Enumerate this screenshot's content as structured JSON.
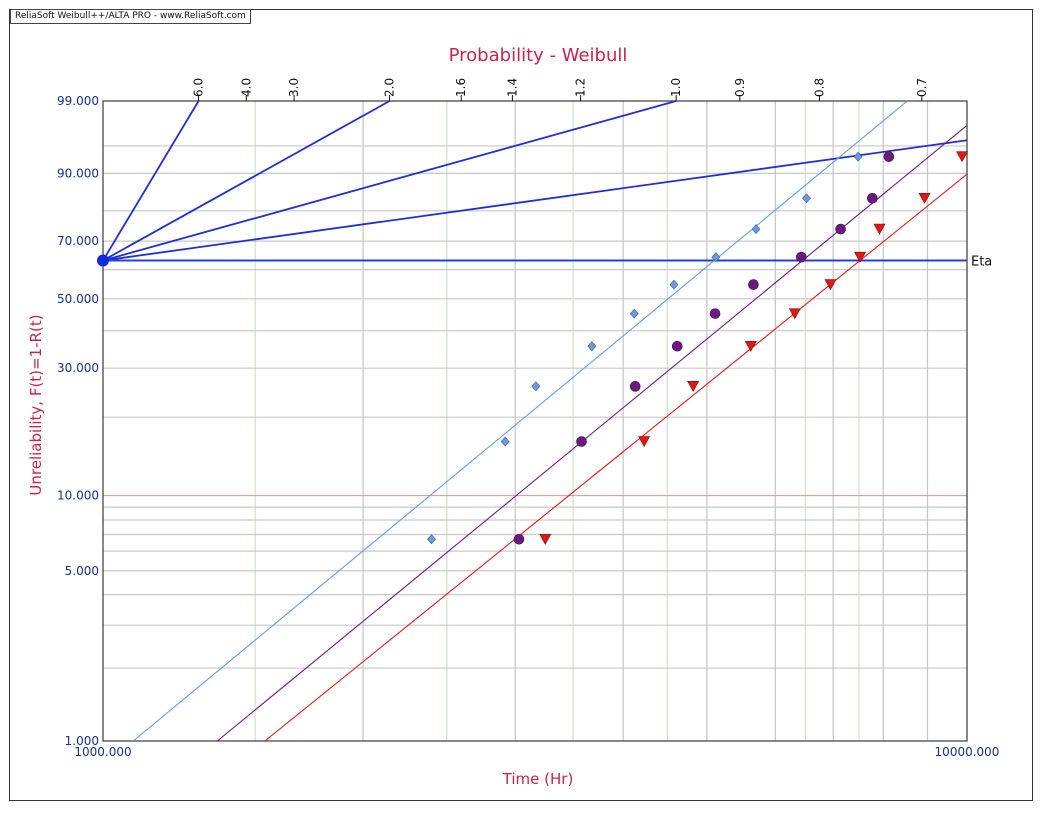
{
  "window": {
    "title": "ReliaSoft Weibull++/ALTA PRO - www.ReliaSoft.com"
  },
  "colors": {
    "accent_text": "#c8234a",
    "tick_text": "#1a2f8c",
    "beta_lines": "#1f2fd6",
    "eta_line": "#2340e0",
    "series_blue": "#6a9be0",
    "series_purple": "#6a1b7f",
    "series_red": "#e01818",
    "grid_gray": "#c8c8c8",
    "grid_green": "#cfe5cc",
    "grid_red": "#ef9a9a"
  },
  "chart_data": {
    "type": "scatter",
    "title": "Probability - Weibull",
    "xlabel": "Time (Hr)",
    "ylabel": "Unreliability, F(t)=1-R(t)",
    "x_scale": "log",
    "y_scale": "weibull",
    "xlim": [
      1000,
      10000
    ],
    "ylim": [
      1,
      99
    ],
    "x_tick_labels": [
      {
        "value": 1000,
        "label": "1000.000"
      },
      {
        "value": 10000,
        "label": "10000.000"
      }
    ],
    "y_tick_labels": [
      {
        "value": 1,
        "label": "1.000"
      },
      {
        "value": 5,
        "label": "5.000"
      },
      {
        "value": 10,
        "label": "10.000"
      },
      {
        "value": 30,
        "label": "30.000"
      },
      {
        "value": 50,
        "label": "50.000"
      },
      {
        "value": 70,
        "label": "70.000"
      },
      {
        "value": 90,
        "label": "90.000"
      },
      {
        "value": 99,
        "label": "99.000"
      }
    ],
    "x_gridlines_gray": [
      2000,
      3000,
      4000,
      5000,
      6000,
      7000,
      8000,
      9000
    ],
    "x_gridlines_green": [
      1500,
      2500,
      3500,
      4500,
      6500,
      7500
    ],
    "y_gridlines_gray": [
      2,
      3,
      4,
      5,
      6,
      7,
      8,
      9,
      20,
      30,
      40,
      50,
      60,
      70,
      80,
      90,
      95
    ],
    "y_gridline_red": 10,
    "beta_scale": {
      "labels": [
        "6.0",
        "4.0",
        "3.0",
        "2.0",
        "1.6",
        "1.4",
        "1.2",
        "1.0",
        "0.9",
        "0.8",
        "0.7"
      ],
      "values": [
        6.0,
        4.0,
        3.0,
        2.0,
        1.6,
        1.4,
        1.2,
        1.0,
        0.9,
        0.8,
        0.7
      ],
      "origin": {
        "x": 1000,
        "y": 63.2
      },
      "lines_drawn": [
        6.0,
        2.0,
        1.0,
        0.5
      ]
    },
    "eta_line": {
      "y": 63.2,
      "label": "Eta"
    },
    "series": [
      {
        "marker": "diamond",
        "color": "#6a9be0",
        "points": [
          [
            2400,
            6.7
          ],
          [
            2920,
            16.2
          ],
          [
            3170,
            25.9
          ],
          [
            3680,
            35.6
          ],
          [
            4120,
            45.2
          ],
          [
            4580,
            54.8
          ],
          [
            5120,
            64.4
          ],
          [
            5700,
            74.1
          ],
          [
            6520,
            83.7
          ],
          [
            7480,
            93.3
          ]
        ],
        "fit": {
          "beta": 2.97,
          "eta": 5100
        }
      },
      {
        "marker": "circle",
        "color": "#6a1b7f",
        "points": [
          [
            3030,
            6.7
          ],
          [
            3580,
            16.2
          ],
          [
            4130,
            25.9
          ],
          [
            4620,
            35.6
          ],
          [
            5110,
            45.2
          ],
          [
            5660,
            54.8
          ],
          [
            6430,
            64.4
          ],
          [
            7140,
            74.1
          ],
          [
            7770,
            83.7
          ],
          [
            8120,
            93.3
          ]
        ],
        "fit": {
          "beta": 2.95,
          "eta": 6450
        }
      },
      {
        "marker": "triangle-down",
        "color": "#e01818",
        "points": [
          [
            3250,
            6.7
          ],
          [
            4230,
            16.2
          ],
          [
            4820,
            25.9
          ],
          [
            5620,
            35.6
          ],
          [
            6320,
            45.2
          ],
          [
            6950,
            54.8
          ],
          [
            7520,
            64.4
          ],
          [
            7920,
            74.1
          ],
          [
            8930,
            83.7
          ],
          [
            9870,
            93.3
          ]
        ],
        "fit": {
          "beta": 2.9,
          "eta": 7520
        }
      }
    ]
  }
}
